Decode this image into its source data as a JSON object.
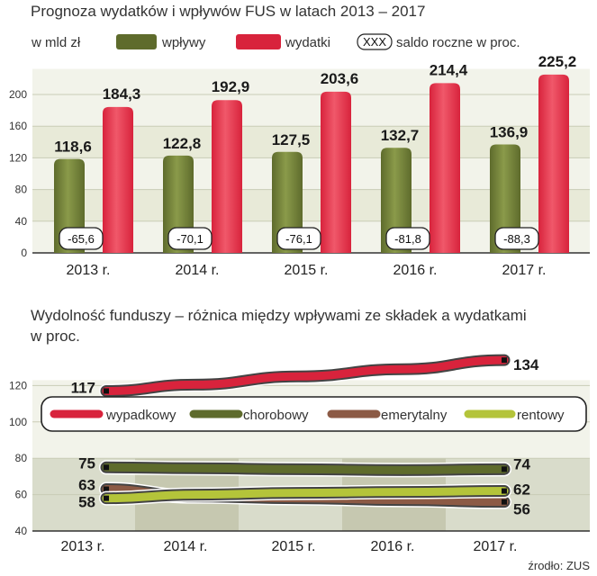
{
  "colors": {
    "inflow": "#5e6b2c",
    "inflow_light": "#8a9a4a",
    "expense": "#d8233c",
    "expense_light": "#f0586a",
    "pension": "#8c5a45",
    "annuity": "#b4c43a",
    "band": "#e8ead8",
    "band_dark": "#b6b89a",
    "plot_bg": "#f2f3ea",
    "plot_bg2": "#d9dccb"
  },
  "top": {
    "title": "Prognoza wydatków i wpływów FUS w latach 2013 – 2017",
    "unit": "w mld zł",
    "legend_inflow": "wpływy",
    "legend_expense": "wydatki",
    "legend_saldo_box": "XXX",
    "legend_saldo": "saldo roczne w proc."
  },
  "bottom": {
    "title_line1": "Wydolność funduszy – różnica między wpływami ze składek a wydatkami",
    "title_line2": "w proc."
  },
  "source": "źrodło: ZUS",
  "chart_data": [
    {
      "type": "bar",
      "title": "Prognoza wydatków i wpływów FUS w latach 2013 – 2017",
      "ylabel": "w mld zł",
      "categories": [
        "2013 r.",
        "2014 r.",
        "2015 r.",
        "2016 r.",
        "2017 r."
      ],
      "series": [
        {
          "name": "wpływy",
          "values": [
            118.6,
            122.8,
            127.5,
            132.7,
            136.9
          ],
          "labels": [
            "118,6",
            "122,8",
            "127,5",
            "132,7",
            "136,9"
          ]
        },
        {
          "name": "wydatki",
          "values": [
            184.3,
            192.9,
            203.6,
            214.4,
            225.2
          ],
          "labels": [
            "184,3",
            "192,9",
            "203,6",
            "214,4",
            "225,2"
          ]
        },
        {
          "name": "saldo roczne w proc.",
          "values": [
            -65.6,
            -70.1,
            -76.1,
            -81.8,
            -88.3
          ],
          "labels": [
            "-65,6",
            "-70,1",
            "-76,1",
            "-81,8",
            "-88,3"
          ]
        }
      ],
      "yticks": [
        0,
        40,
        80,
        120,
        160,
        200
      ],
      "ylim": [
        0,
        230
      ]
    },
    {
      "type": "line",
      "title": "Wydolność funduszy – różnica między wpływami ze składek a wydatkami w proc.",
      "categories": [
        "2013 r.",
        "2014 r.",
        "2015 r.",
        "2016 r.",
        "2017 r."
      ],
      "series": [
        {
          "name": "wypadkowy",
          "values": [
            117,
            120.5,
            125,
            129,
            134
          ],
          "start_label": "117",
          "end_label": "134"
        },
        {
          "name": "chorobowy",
          "values": [
            75,
            74.5,
            74,
            73.5,
            74
          ],
          "start_label": "75",
          "end_label": "74"
        },
        {
          "name": "emerytalny",
          "values": [
            63,
            59,
            58,
            57,
            56
          ],
          "start_label": "63",
          "end_label": "56"
        },
        {
          "name": "rentowy",
          "values": [
            58,
            60,
            61,
            61.5,
            62
          ],
          "start_label": "58",
          "end_label": "62"
        }
      ],
      "yticks": [
        40,
        60,
        80,
        100,
        120
      ],
      "ylim": [
        40,
        140
      ]
    }
  ]
}
